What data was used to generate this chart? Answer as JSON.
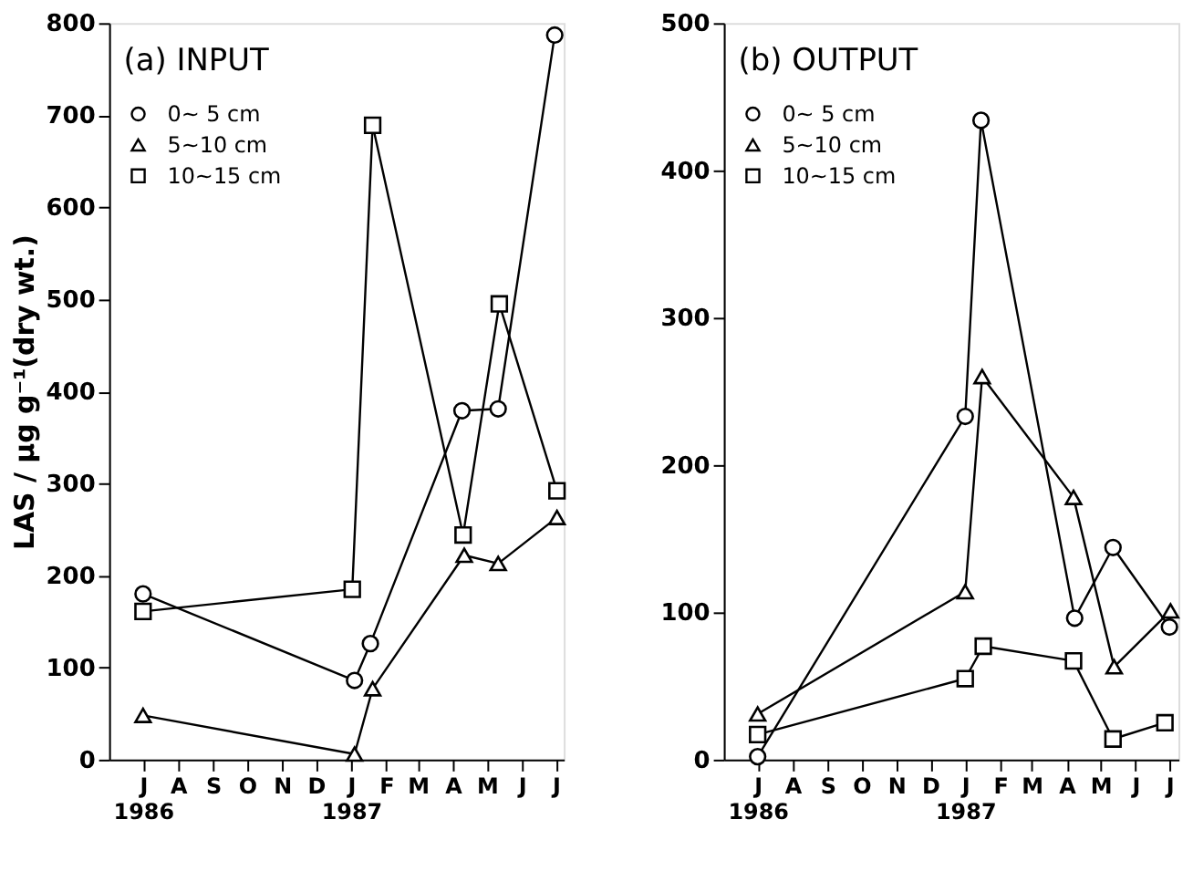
{
  "chart_data": [
    {
      "type": "line",
      "title": "(a) INPUT",
      "ylabel": "LAS / μg g⁻¹(dry wt.)",
      "legend": "top left",
      "grid": false,
      "xlim": [
        "1986-06-01",
        "1987-07-08"
      ],
      "xticks": [
        {
          "value": "1986-07-01",
          "label": "J\n1986"
        },
        {
          "value": "1986-08-01",
          "label": "A"
        },
        {
          "value": "1986-09-01",
          "label": "S"
        },
        {
          "value": "1986-10-01",
          "label": "O"
        },
        {
          "value": "1986-11-01",
          "label": "N"
        },
        {
          "value": "1986-12-01",
          "label": "D"
        },
        {
          "value": "1987-01-01",
          "label": "J\n1987"
        },
        {
          "value": "1987-02-01",
          "label": "F"
        },
        {
          "value": "1987-03-01",
          "label": "M"
        },
        {
          "value": "1987-04-01",
          "label": "A"
        },
        {
          "value": "1987-05-01",
          "label": "M"
        },
        {
          "value": "1987-06-01",
          "label": "J"
        },
        {
          "value": "1987-07-01",
          "label": "J"
        }
      ],
      "ylim": [
        0,
        800
      ],
      "yticks": [
        0,
        100,
        200,
        300,
        400,
        500,
        600,
        700,
        800
      ],
      "series": [
        {
          "name": "0~ 5 cm",
          "color": "#000000",
          "marker": "circle",
          "x": [
            "1986-07-01",
            "1987-01-04",
            "1987-01-18",
            "1987-04-09",
            "1987-05-11",
            "1987-06-30"
          ],
          "values": [
            180,
            86,
            126,
            379,
            381,
            787
          ]
        },
        {
          "name": "5~10 cm",
          "color": "#000000",
          "marker": "triangle",
          "x": [
            "1986-07-01",
            "1987-01-04",
            "1987-01-20",
            "1987-04-11",
            "1987-05-11",
            "1987-07-02"
          ],
          "values": [
            48,
            6,
            77,
            222,
            213,
            263
          ]
        },
        {
          "name": "10~15 cm",
          "color": "#000000",
          "marker": "square",
          "x": [
            "1986-07-01",
            "1987-01-02",
            "1987-01-20",
            "1987-04-10",
            "1987-05-12",
            "1987-07-02"
          ],
          "values": [
            161,
            185,
            689,
            244,
            495,
            292
          ]
        }
      ]
    },
    {
      "type": "line",
      "title": "(b) OUTPUT",
      "legend": "top left",
      "grid": false,
      "xlim": [
        "1986-06-01",
        "1987-07-09"
      ],
      "xticks": [
        {
          "value": "1986-07-01",
          "label": "J\n1986"
        },
        {
          "value": "1986-08-01",
          "label": "A"
        },
        {
          "value": "1986-09-01",
          "label": "S"
        },
        {
          "value": "1986-10-01",
          "label": "O"
        },
        {
          "value": "1986-11-01",
          "label": "N"
        },
        {
          "value": "1986-12-01",
          "label": "D"
        },
        {
          "value": "1987-01-01",
          "label": "J\n1987"
        },
        {
          "value": "1987-02-01",
          "label": "F"
        },
        {
          "value": "1987-03-01",
          "label": "M"
        },
        {
          "value": "1987-04-01",
          "label": "A"
        },
        {
          "value": "1987-05-01",
          "label": "M"
        },
        {
          "value": "1987-06-01",
          "label": "J"
        },
        {
          "value": "1987-07-01",
          "label": "J"
        }
      ],
      "ylim": [
        0,
        500
      ],
      "yticks": [
        0,
        100,
        200,
        300,
        400,
        500
      ],
      "series": [
        {
          "name": "0~ 5 cm",
          "color": "#000000",
          "marker": "circle",
          "x": [
            "1986-07-01",
            "1987-01-01",
            "1987-01-15",
            "1987-04-08",
            "1987-05-12",
            "1987-07-01"
          ],
          "values": [
            2,
            233,
            434,
            96,
            144,
            90
          ]
        },
        {
          "name": "5~10 cm",
          "color": "#000000",
          "marker": "triangle",
          "x": [
            "1986-07-01",
            "1987-01-01",
            "1987-01-16",
            "1987-04-07",
            "1987-05-13",
            "1987-07-02"
          ],
          "values": [
            31,
            114,
            260,
            178,
            63,
            101
          ]
        },
        {
          "name": "10~15 cm",
          "color": "#000000",
          "marker": "square",
          "x": [
            "1986-07-01",
            "1987-01-01",
            "1987-01-17",
            "1987-04-07",
            "1987-05-12",
            "1987-06-27"
          ],
          "values": [
            17,
            55,
            77,
            67,
            14,
            25
          ]
        }
      ]
    }
  ]
}
